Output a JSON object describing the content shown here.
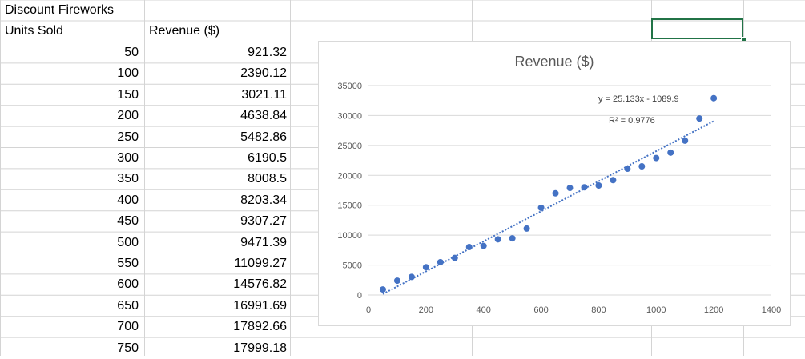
{
  "sheet": {
    "title": "Discount Fireworks",
    "col_a_header": "Units Sold",
    "col_b_header": "Revenue ($)",
    "rows": [
      {
        "units": "50",
        "revenue": "921.32"
      },
      {
        "units": "100",
        "revenue": "2390.12"
      },
      {
        "units": "150",
        "revenue": "3021.11"
      },
      {
        "units": "200",
        "revenue": "4638.84"
      },
      {
        "units": "250",
        "revenue": "5482.86"
      },
      {
        "units": "300",
        "revenue": "6190.5"
      },
      {
        "units": "350",
        "revenue": "8008.5"
      },
      {
        "units": "400",
        "revenue": "8203.34"
      },
      {
        "units": "450",
        "revenue": "9307.27"
      },
      {
        "units": "500",
        "revenue": "9471.39"
      },
      {
        "units": "550",
        "revenue": "11099.27"
      },
      {
        "units": "600",
        "revenue": "14576.82"
      },
      {
        "units": "650",
        "revenue": "16991.69"
      },
      {
        "units": "700",
        "revenue": "17892.66"
      },
      {
        "units": "750",
        "revenue": "17999.18"
      }
    ]
  },
  "chart_data": {
    "type": "scatter",
    "title": "Revenue ($)",
    "xlabel": "",
    "ylabel": "",
    "xlim": [
      0,
      1400
    ],
    "ylim": [
      0,
      35000
    ],
    "xticks": [
      "0",
      "200",
      "400",
      "600",
      "800",
      "1000",
      "1200",
      "1400"
    ],
    "yticks": [
      "0",
      "5000",
      "10000",
      "15000",
      "20000",
      "25000",
      "30000",
      "35000"
    ],
    "grid": true,
    "legend": "none",
    "series": [
      {
        "x": [
          50,
          100,
          150,
          200,
          250,
          300,
          350,
          400,
          450,
          500,
          550,
          600,
          650,
          700,
          750,
          800,
          850,
          900,
          950,
          1000,
          1050,
          1100,
          1150,
          1200
        ],
        "y": [
          921.32,
          2390.12,
          3021.11,
          4638.84,
          5482.86,
          6190.5,
          8008.5,
          8203.34,
          9307.27,
          9471.39,
          11099.27,
          14576.82,
          16991.69,
          17892.66,
          17999.18,
          18300,
          19200,
          21100,
          21500,
          22900,
          23800,
          25800,
          29500,
          32900
        ]
      }
    ],
    "trendline": {
      "type": "linear",
      "slope": 25.133,
      "intercept": -1089.9,
      "x_range": [
        50,
        1200
      ],
      "equation_label": "y = 25.133x - 1089.9",
      "r2_label": "R² = 0.9776"
    },
    "colors": {
      "marker": "#4472c4",
      "trendline": "#4472c4",
      "grid": "#d9d9d9",
      "text": "#595959"
    }
  }
}
